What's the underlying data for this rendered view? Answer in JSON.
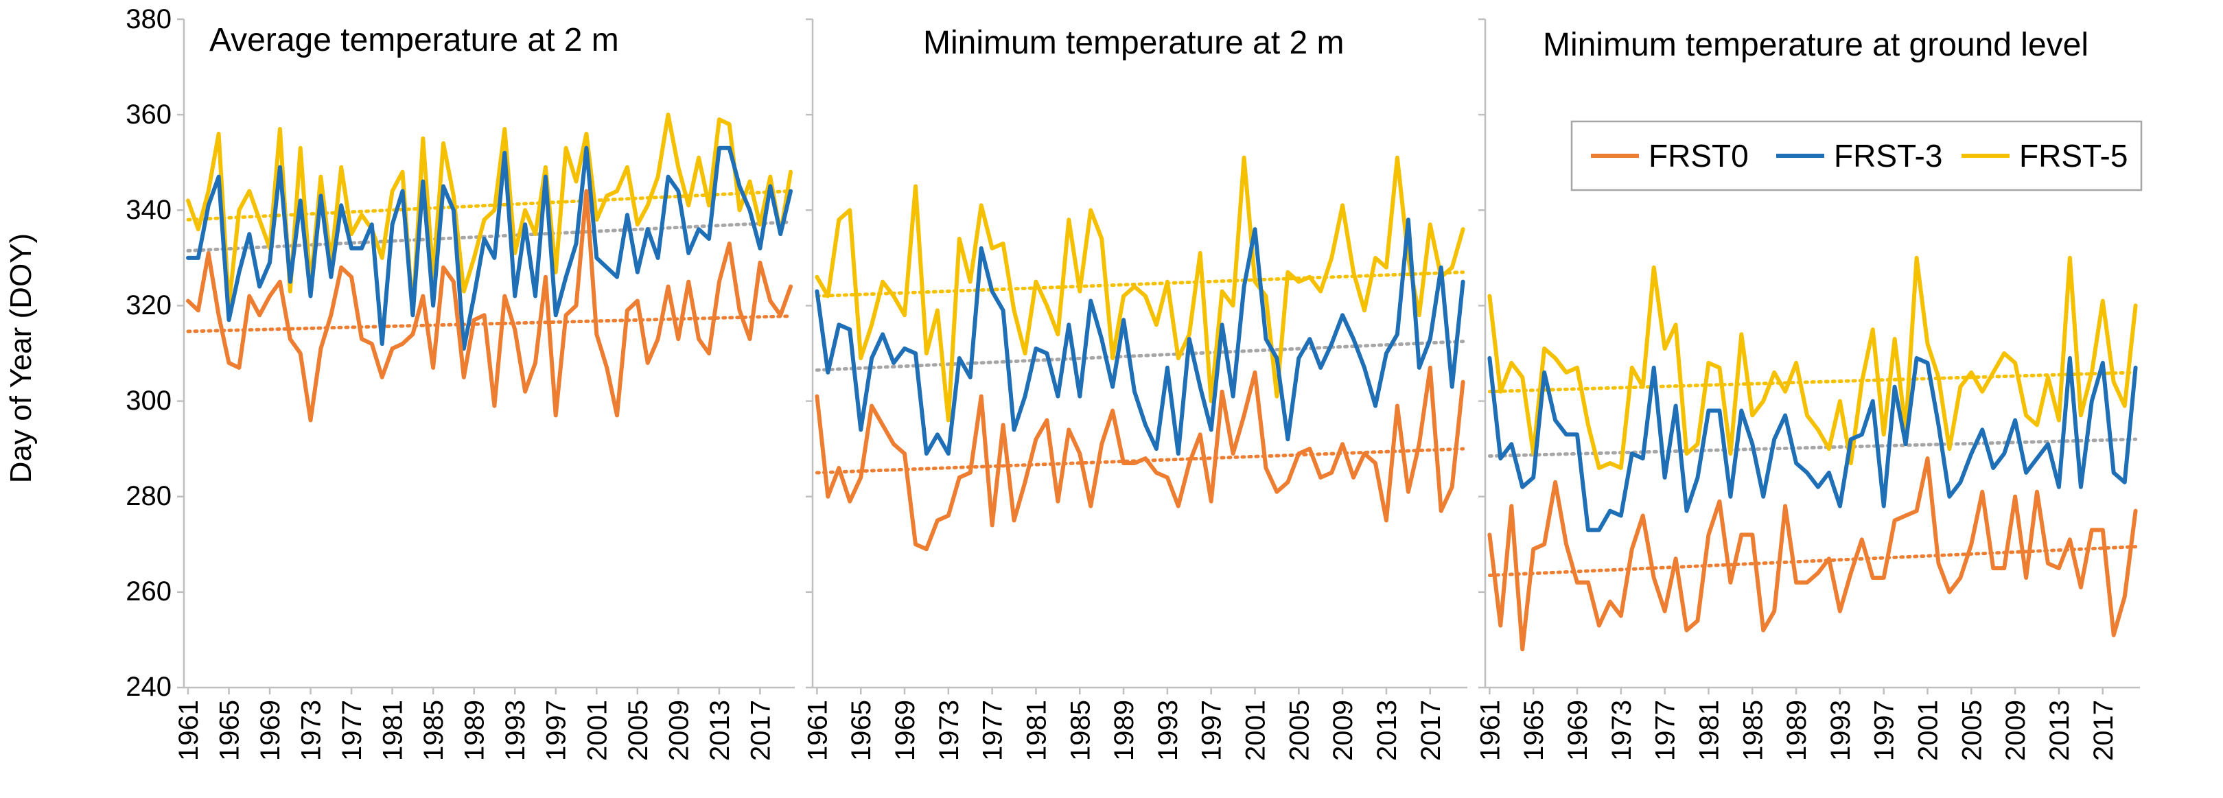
{
  "colors": {
    "FRST0": "#ED7D31",
    "FRST-3": "#1F6FB7",
    "FRST-5": "#F5C000",
    "trend-FRST-3": "#A6A6A6",
    "axis": "#BFBFBF"
  },
  "chart_data": [
    {
      "type": "line",
      "title": "Average temperature at 2 m",
      "xlabel": "",
      "ylabel": "Day of Year (DOY)",
      "ylim": [
        240,
        380
      ],
      "yticks": [
        "240",
        "260",
        "280",
        "300",
        "320",
        "340",
        "360",
        "380"
      ],
      "xticks": [
        "1961",
        "1965",
        "1969",
        "1973",
        "1977",
        "1981",
        "1985",
        "1989",
        "1993",
        "1997",
        "2001",
        "2005",
        "2009",
        "2013",
        "2017"
      ],
      "x": [
        1961,
        1962,
        1963,
        1964,
        1965,
        1966,
        1967,
        1968,
        1969,
        1970,
        1971,
        1972,
        1973,
        1974,
        1975,
        1976,
        1977,
        1978,
        1979,
        1980,
        1981,
        1982,
        1983,
        1984,
        1985,
        1986,
        1987,
        1988,
        1989,
        1990,
        1991,
        1992,
        1993,
        1994,
        1995,
        1996,
        1997,
        1998,
        1999,
        2000,
        2001,
        2002,
        2003,
        2004,
        2005,
        2006,
        2007,
        2008,
        2009,
        2010,
        2011,
        2012,
        2013,
        2014,
        2015,
        2016,
        2017,
        2018,
        2019,
        2020
      ],
      "series": [
        {
          "name": "FRST0",
          "values": [
            321,
            319,
            331,
            318,
            308,
            307,
            322,
            318,
            322,
            325,
            313,
            310,
            296,
            311,
            318,
            328,
            326,
            313,
            312,
            305,
            311,
            312,
            314,
            322,
            307,
            328,
            325,
            305,
            317,
            318,
            299,
            322,
            315,
            302,
            308,
            326,
            297,
            318,
            320,
            344,
            314,
            307,
            297,
            319,
            321,
            308,
            313,
            324,
            313,
            325,
            313,
            310,
            325,
            333,
            319,
            313,
            329,
            321,
            318,
            324
          ],
          "trend": [
            314.6,
            317.8
          ]
        },
        {
          "name": "FRST-3",
          "values": [
            330,
            330,
            341,
            347,
            317,
            327,
            335,
            324,
            329,
            349,
            325,
            342,
            322,
            343,
            326,
            341,
            332,
            332,
            337,
            312,
            337,
            344,
            318,
            346,
            320,
            345,
            340,
            311,
            322,
            334,
            330,
            352,
            322,
            337,
            322,
            347,
            318,
            326,
            333,
            353,
            330,
            328,
            326,
            339,
            327,
            336,
            330,
            347,
            344,
            331,
            336,
            334,
            353,
            353,
            345,
            340,
            332,
            345,
            335,
            344
          ],
          "trend": [
            331.5,
            337.5
          ]
        },
        {
          "name": "FRST-5",
          "values": [
            342,
            336,
            344,
            356,
            320,
            340,
            344,
            338,
            332,
            357,
            323,
            353,
            324,
            347,
            329,
            349,
            335,
            339,
            336,
            330,
            344,
            348,
            318,
            355,
            326,
            354,
            343,
            323,
            330,
            338,
            340,
            357,
            331,
            340,
            335,
            349,
            327,
            353,
            346,
            356,
            338,
            343,
            344,
            349,
            337,
            341,
            347,
            360,
            349,
            341,
            351,
            341,
            359,
            358,
            340,
            346,
            337,
            347,
            335,
            348
          ],
          "trend": [
            338.0,
            344.0
          ]
        }
      ]
    },
    {
      "type": "line",
      "title": "Minimum temperature at 2 m",
      "xlabel": "",
      "ylabel": "",
      "ylim": [
        240,
        380
      ],
      "xticks": [
        "1961",
        "1965",
        "1969",
        "1973",
        "1977",
        "1981",
        "1985",
        "1989",
        "1993",
        "1997",
        "2001",
        "2005",
        "2009",
        "2013",
        "2017"
      ],
      "x": [
        1961,
        1962,
        1963,
        1964,
        1965,
        1966,
        1967,
        1968,
        1969,
        1970,
        1971,
        1972,
        1973,
        1974,
        1975,
        1976,
        1977,
        1978,
        1979,
        1980,
        1981,
        1982,
        1983,
        1984,
        1985,
        1986,
        1987,
        1988,
        1989,
        1990,
        1991,
        1992,
        1993,
        1994,
        1995,
        1996,
        1997,
        1998,
        1999,
        2000,
        2001,
        2002,
        2003,
        2004,
        2005,
        2006,
        2007,
        2008,
        2009,
        2010,
        2011,
        2012,
        2013,
        2014,
        2015,
        2016,
        2017,
        2018,
        2019,
        2020
      ],
      "series": [
        {
          "name": "FRST0",
          "values": [
            301,
            280,
            286,
            279,
            284,
            299,
            295,
            291,
            289,
            270,
            269,
            275,
            276,
            284,
            285,
            301,
            274,
            295,
            275,
            283,
            292,
            296,
            279,
            294,
            289,
            278,
            291,
            298,
            287,
            287,
            288,
            285,
            284,
            278,
            287,
            293,
            279,
            302,
            289,
            297,
            306,
            286,
            281,
            283,
            289,
            290,
            284,
            285,
            291,
            284,
            289,
            287,
            275,
            299,
            281,
            291,
            307,
            277,
            282,
            304
          ],
          "trend": [
            285.0,
            290.0
          ]
        },
        {
          "name": "FRST-3",
          "values": [
            323,
            306,
            316,
            315,
            294,
            309,
            314,
            308,
            311,
            310,
            289,
            293,
            289,
            309,
            305,
            332,
            323,
            319,
            294,
            301,
            311,
            310,
            301,
            316,
            301,
            321,
            313,
            303,
            317,
            302,
            295,
            290,
            307,
            289,
            313,
            303,
            294,
            316,
            301,
            324,
            336,
            313,
            309,
            292,
            309,
            313,
            307,
            312,
            318,
            313,
            307,
            299,
            310,
            314,
            338,
            307,
            313,
            328,
            303,
            325
          ],
          "trend": [
            306.5,
            312.5
          ]
        },
        {
          "name": "FRST-5",
          "values": [
            326,
            322,
            338,
            340,
            309,
            316,
            325,
            322,
            318,
            345,
            310,
            319,
            296,
            334,
            325,
            341,
            332,
            333,
            319,
            310,
            325,
            320,
            314,
            338,
            323,
            340,
            334,
            309,
            322,
            324,
            322,
            316,
            325,
            309,
            314,
            331,
            300,
            323,
            320,
            351,
            325,
            322,
            301,
            327,
            325,
            326,
            323,
            330,
            341,
            327,
            319,
            330,
            328,
            351,
            330,
            318,
            337,
            326,
            328,
            336
          ],
          "trend": [
            322.0,
            327.0
          ]
        }
      ]
    },
    {
      "type": "line",
      "title": "Minimum temperature at ground level",
      "xlabel": "",
      "ylabel": "",
      "ylim": [
        240,
        380
      ],
      "xticks": [
        "1961",
        "1965",
        "1969",
        "1973",
        "1977",
        "1981",
        "1985",
        "1989",
        "1993",
        "1997",
        "2001",
        "2005",
        "2009",
        "2013",
        "2017"
      ],
      "legend": {
        "position": "top-right",
        "entries": [
          "FRST0",
          "FRST-3",
          "FRST-5"
        ]
      },
      "x": [
        1961,
        1962,
        1963,
        1964,
        1965,
        1966,
        1967,
        1968,
        1969,
        1970,
        1971,
        1972,
        1973,
        1974,
        1975,
        1976,
        1977,
        1978,
        1979,
        1980,
        1981,
        1982,
        1983,
        1984,
        1985,
        1986,
        1987,
        1988,
        1989,
        1990,
        1991,
        1992,
        1993,
        1994,
        1995,
        1996,
        1997,
        1998,
        1999,
        2000,
        2001,
        2002,
        2003,
        2004,
        2005,
        2006,
        2007,
        2008,
        2009,
        2010,
        2011,
        2012,
        2013,
        2014,
        2015,
        2016,
        2017,
        2018,
        2019,
        2020
      ],
      "series": [
        {
          "name": "FRST0",
          "values": [
            272,
            253,
            278,
            248,
            269,
            270,
            283,
            270,
            262,
            262,
            253,
            258,
            255,
            269,
            276,
            263,
            256,
            267,
            252,
            254,
            272,
            279,
            262,
            272,
            272,
            252,
            256,
            278,
            262,
            262,
            264,
            267,
            256,
            264,
            271,
            263,
            263,
            275,
            276,
            277,
            288,
            266,
            260,
            263,
            270,
            281,
            265,
            265,
            280,
            263,
            281,
            266,
            265,
            271,
            261,
            273,
            273,
            251,
            259,
            277
          ],
          "trend": [
            263.5,
            269.5
          ]
        },
        {
          "name": "FRST-3",
          "values": [
            309,
            288,
            291,
            282,
            284,
            306,
            296,
            293,
            293,
            273,
            273,
            277,
            276,
            289,
            288,
            307,
            284,
            299,
            277,
            284,
            298,
            298,
            280,
            298,
            291,
            280,
            292,
            297,
            287,
            285,
            282,
            285,
            278,
            292,
            293,
            300,
            278,
            303,
            291,
            309,
            308,
            295,
            280,
            283,
            289,
            294,
            286,
            289,
            296,
            285,
            288,
            291,
            282,
            309,
            282,
            300,
            308,
            285,
            283,
            307
          ],
          "trend": [
            288.5,
            292.0
          ]
        },
        {
          "name": "FRST-5",
          "values": [
            322,
            302,
            308,
            305,
            289,
            311,
            309,
            306,
            307,
            295,
            286,
            287,
            286,
            307,
            303,
            328,
            311,
            316,
            289,
            291,
            308,
            307,
            289,
            314,
            297,
            300,
            306,
            302,
            308,
            297,
            294,
            290,
            300,
            287,
            304,
            315,
            293,
            313,
            294,
            330,
            312,
            305,
            290,
            303,
            306,
            302,
            306,
            310,
            308,
            297,
            295,
            305,
            296,
            330,
            297,
            306,
            321,
            304,
            299,
            320
          ],
          "trend": [
            302.0,
            306.0
          ]
        }
      ]
    }
  ]
}
